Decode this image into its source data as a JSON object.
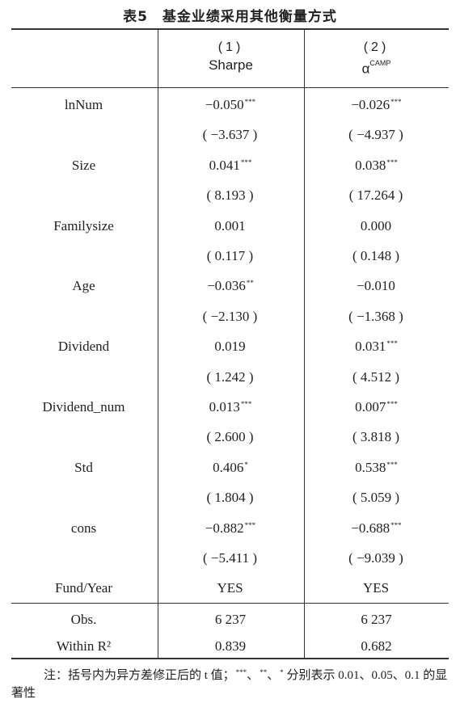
{
  "title": "表5　基金业绩采用其他衡量方式",
  "header": {
    "col1_num": "(1)",
    "col1_label": "Sharpe",
    "col2_num": "(2)",
    "col2_label": "α",
    "col2_sup": "CAMP"
  },
  "rows": [
    {
      "label": "lnNum",
      "v1": "−0.050",
      "s1": "***",
      "v2": "−0.026",
      "s2": "***"
    },
    {
      "label": "",
      "v1": "( −3.637 )",
      "s1": "",
      "v2": "( −4.937 )",
      "s2": ""
    },
    {
      "label": "Size",
      "v1": "0.041",
      "s1": "***",
      "v2": "0.038",
      "s2": "***"
    },
    {
      "label": "",
      "v1": "( 8.193 )",
      "s1": "",
      "v2": "( 17.264 )",
      "s2": ""
    },
    {
      "label": "Familysize",
      "v1": "0.001",
      "s1": "",
      "v2": "0.000",
      "s2": ""
    },
    {
      "label": "",
      "v1": "( 0.117 )",
      "s1": "",
      "v2": "( 0.148 )",
      "s2": ""
    },
    {
      "label": "Age",
      "v1": "−0.036",
      "s1": "**",
      "v2": "−0.010",
      "s2": ""
    },
    {
      "label": "",
      "v1": "( −2.130 )",
      "s1": "",
      "v2": "( −1.368 )",
      "s2": ""
    },
    {
      "label": "Dividend",
      "v1": "0.019",
      "s1": "",
      "v2": "0.031",
      "s2": "***"
    },
    {
      "label": "",
      "v1": "( 1.242 )",
      "s1": "",
      "v2": "( 4.512 )",
      "s2": ""
    },
    {
      "label": "Dividend_num",
      "v1": "0.013",
      "s1": "***",
      "v2": "0.007",
      "s2": "***"
    },
    {
      "label": "",
      "v1": "( 2.600 )",
      "s1": "",
      "v2": "( 3.818 )",
      "s2": ""
    },
    {
      "label": "Std",
      "v1": "0.406",
      "s1": "*",
      "v2": "0.538",
      "s2": "***"
    },
    {
      "label": "",
      "v1": "( 1.804 )",
      "s1": "",
      "v2": "( 5.059 )",
      "s2": ""
    },
    {
      "label": "cons",
      "v1": "−0.882",
      "s1": "***",
      "v2": "−0.688",
      "s2": "***"
    },
    {
      "label": "",
      "v1": "( −5.411 )",
      "s1": "",
      "v2": "( −9.039 )",
      "s2": ""
    },
    {
      "label": "Fund/Year",
      "v1": "YES",
      "s1": "",
      "v2": "YES",
      "s2": ""
    }
  ],
  "stats": [
    {
      "label": "Obs.",
      "v1": "6 237",
      "v2": "6 237"
    },
    {
      "label": "Within R²",
      "v1": "0.839",
      "v2": "0.682"
    }
  ],
  "note": {
    "prefix": "注：括号内为异方差修正后的 t 值；",
    "m1": "***",
    "sep1": "、",
    "m2": "**",
    "sep2": "、",
    "m3": "*",
    "suffix": " 分别表示 0.01、0.05、0.1 的显著性"
  }
}
